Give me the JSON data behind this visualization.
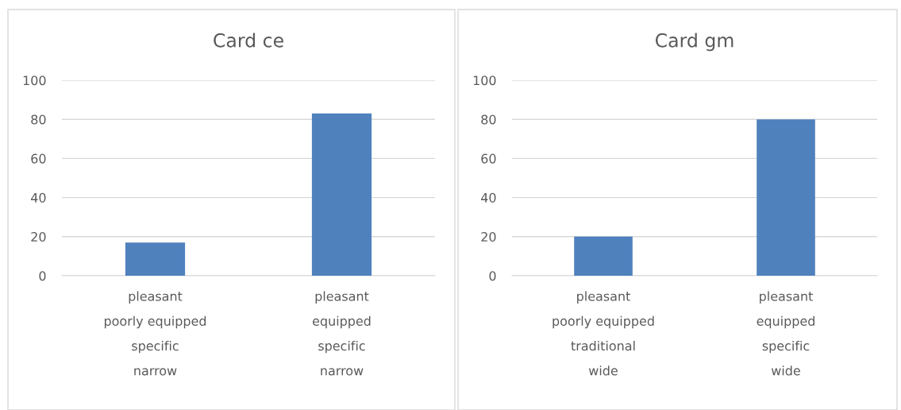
{
  "chart_data": [
    {
      "type": "bar",
      "title": "Card ce",
      "categories": [
        "pleasant\npoorly equipped\nspecific\nnarrow",
        "pleasant\nequipped\nspecific\nnarrow"
      ],
      "values": [
        17,
        83
      ],
      "color": "#4f81bd",
      "ylim": [
        0,
        100
      ],
      "yticks": [
        0,
        20,
        40,
        60,
        80,
        100
      ],
      "grid": "y"
    },
    {
      "type": "bar",
      "title": "Card gm",
      "categories": [
        "pleasant\npoorly equipped\ntraditional\nwide",
        "pleasant\nequipped\nspecific\nwide"
      ],
      "values": [
        20,
        80
      ],
      "color": "#4f81bd",
      "ylim": [
        0,
        100
      ],
      "yticks": [
        0,
        20,
        40,
        60,
        80,
        100
      ],
      "grid": "y"
    }
  ]
}
